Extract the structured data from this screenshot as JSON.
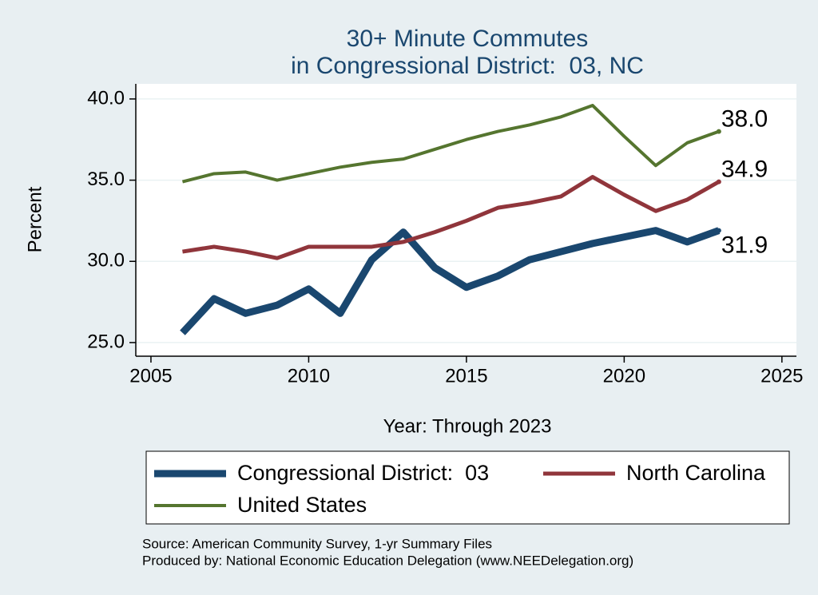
{
  "chart_data": {
    "type": "line",
    "title": [
      "30+ Minute Commutes",
      "in Congressional District:  03, NC"
    ],
    "x_label": "Year: Through 2023",
    "y_label": "Percent",
    "x": [
      2006,
      2007,
      2008,
      2009,
      2010,
      2011,
      2012,
      2013,
      2014,
      2015,
      2016,
      2017,
      2018,
      2019,
      2020,
      2021,
      2022,
      2023
    ],
    "series": [
      {
        "name": "Congressional District:  03",
        "color": "#1a476f",
        "values": [
          25.6,
          27.7,
          26.8,
          27.3,
          28.3,
          26.8,
          30.1,
          31.8,
          29.6,
          28.4,
          29.1,
          30.1,
          30.6,
          31.1,
          31.5,
          31.9,
          31.2,
          31.9
        ],
        "value_labels": [
          null,
          null,
          null,
          null,
          null,
          null,
          null,
          null,
          null,
          null,
          null,
          null,
          null,
          null,
          null,
          null,
          null,
          "31.9"
        ]
      },
      {
        "name": "North Carolina",
        "color": "#90353b",
        "values": [
          30.6,
          30.9,
          30.6,
          30.2,
          30.9,
          30.9,
          30.9,
          31.2,
          31.8,
          32.5,
          33.3,
          33.6,
          34.0,
          35.2,
          34.1,
          33.1,
          33.8,
          34.9
        ],
        "value_labels": [
          null,
          null,
          null,
          null,
          null,
          null,
          null,
          null,
          null,
          null,
          null,
          null,
          null,
          null,
          null,
          null,
          null,
          "34.9"
        ]
      },
      {
        "name": "United States",
        "color": "#55752f",
        "values": [
          34.9,
          35.4,
          35.5,
          35.0,
          35.4,
          35.8,
          36.1,
          36.3,
          36.9,
          37.5,
          38.0,
          38.4,
          38.9,
          39.6,
          37.7,
          35.9,
          37.3,
          38.0
        ],
        "value_labels": [
          null,
          null,
          null,
          null,
          null,
          null,
          null,
          null,
          null,
          null,
          null,
          null,
          null,
          null,
          null,
          null,
          null,
          "38.0"
        ]
      }
    ],
    "xlim": [
      2004.52,
      2025.46
    ],
    "ylim": [
      24.16,
      40.93
    ],
    "xticks": [
      2005,
      2010,
      2015,
      2020,
      2025
    ],
    "yticks": [
      {
        "value": 25,
        "label": "25.0"
      },
      {
        "value": 30,
        "label": "30.0"
      },
      {
        "value": 35,
        "label": "35.0"
      },
      {
        "value": 40,
        "label": "40.0"
      }
    ],
    "grid": true,
    "notes": [
      "Source: American Community Survey, 1-yr Summary Files",
      "Produced by: National Economic Education Delegation (www.NEEDelegation.org)"
    ]
  }
}
